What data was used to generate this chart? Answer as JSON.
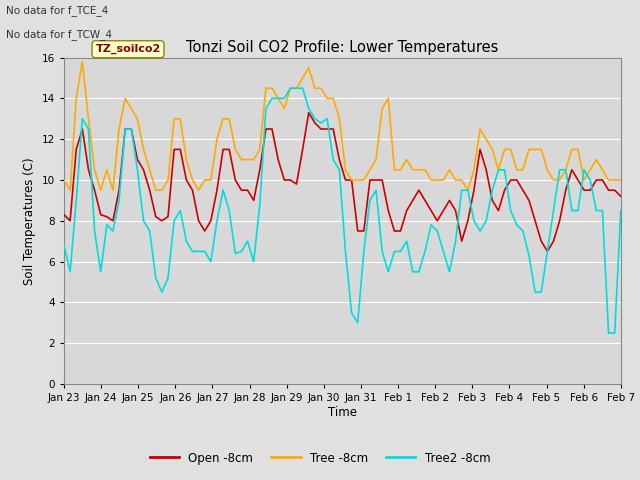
{
  "title": "Tonzi Soil CO2 Profile: Lower Temperatures",
  "ylabel": "Soil Temperatures (C)",
  "xlabel": "Time",
  "annotation1": "No data for f_TCE_4",
  "annotation2": "No data for f_TCW_4",
  "legend_box_label": "TZ_soilco2",
  "ylim": [
    0,
    16
  ],
  "yticks": [
    0,
    2,
    4,
    6,
    8,
    10,
    12,
    14,
    16
  ],
  "xtick_labels": [
    "Jan 23",
    "Jan 24",
    "Jan 25",
    "Jan 26",
    "Jan 27",
    "Jan 28",
    "Jan 29",
    "Jan 30",
    "Jan 31",
    "Feb 1",
    "Feb 2",
    "Feb 3",
    "Feb 4",
    "Feb 5",
    "Feb 6",
    "Feb 7"
  ],
  "line_colors": {
    "open": "#cc0000",
    "tree": "#ffaa00",
    "tree2": "#00dddd"
  },
  "legend_entries": [
    "Open -8cm",
    "Tree -8cm",
    "Tree2 -8cm"
  ],
  "background_color": "#e0e0e0",
  "plot_bg_color": "#d8d8d8",
  "grid_color": "#ffffff",
  "open_data": [
    8.3,
    8.0,
    11.5,
    12.5,
    10.5,
    9.5,
    8.3,
    8.2,
    8.0,
    9.5,
    12.5,
    12.5,
    11.0,
    10.5,
    9.5,
    8.2,
    8.0,
    8.2,
    11.5,
    11.5,
    10.0,
    9.5,
    8.0,
    7.5,
    8.0,
    9.5,
    11.5,
    11.5,
    10.0,
    9.5,
    9.5,
    9.0,
    10.5,
    12.5,
    12.5,
    11.0,
    10.0,
    10.0,
    9.8,
    11.5,
    13.3,
    12.8,
    12.5,
    12.5,
    12.5,
    11.0,
    10.0,
    10.0,
    7.5,
    7.5,
    10.0,
    10.0,
    10.0,
    8.5,
    7.5,
    7.5,
    8.5,
    9.0,
    9.5,
    9.0,
    8.5,
    8.0,
    8.5,
    9.0,
    8.5,
    7.0,
    8.0,
    9.5,
    11.5,
    10.5,
    9.0,
    8.5,
    9.5,
    10.0,
    10.0,
    9.5,
    9.0,
    8.0,
    7.0,
    6.5,
    7.0,
    8.0,
    9.5,
    10.5,
    10.0,
    9.5,
    9.5,
    10.0,
    10.0,
    9.5,
    9.5,
    9.2
  ],
  "tree_data": [
    10.0,
    9.5,
    14.0,
    15.8,
    13.0,
    10.5,
    9.5,
    10.5,
    9.5,
    12.5,
    14.0,
    13.5,
    13.0,
    11.5,
    10.5,
    9.5,
    9.5,
    10.0,
    13.0,
    13.0,
    11.0,
    10.0,
    9.5,
    10.0,
    10.0,
    12.0,
    13.0,
    13.0,
    11.5,
    11.0,
    11.0,
    11.0,
    11.5,
    14.5,
    14.5,
    14.0,
    13.5,
    14.5,
    14.5,
    15.0,
    15.5,
    14.5,
    14.5,
    14.0,
    14.0,
    13.0,
    10.5,
    10.0,
    10.0,
    10.0,
    10.5,
    11.0,
    13.5,
    14.0,
    10.5,
    10.5,
    11.0,
    10.5,
    10.5,
    10.5,
    10.0,
    10.0,
    10.0,
    10.5,
    10.0,
    10.0,
    9.5,
    10.5,
    12.5,
    12.0,
    11.5,
    10.5,
    11.5,
    11.5,
    10.5,
    10.5,
    11.5,
    11.5,
    11.5,
    10.5,
    10.0,
    10.0,
    10.5,
    11.5,
    11.5,
    10.0,
    10.5,
    11.0,
    10.5,
    10.0,
    10.0,
    10.0
  ],
  "tree2_data": [
    6.8,
    5.5,
    9.0,
    13.0,
    12.5,
    7.5,
    5.5,
    7.8,
    7.5,
    9.0,
    12.5,
    12.5,
    10.5,
    8.0,
    7.5,
    5.2,
    4.5,
    5.2,
    8.0,
    8.5,
    7.0,
    6.5,
    6.5,
    6.5,
    6.0,
    8.0,
    9.5,
    8.5,
    6.4,
    6.5,
    7.0,
    6.0,
    8.8,
    13.5,
    14.0,
    14.0,
    14.0,
    14.5,
    14.5,
    14.5,
    13.5,
    13.0,
    12.8,
    13.0,
    11.0,
    10.5,
    6.5,
    3.5,
    3.0,
    6.5,
    9.0,
    9.5,
    6.5,
    5.5,
    6.5,
    6.5,
    7.0,
    5.5,
    5.5,
    6.5,
    7.8,
    7.5,
    6.5,
    5.5,
    7.0,
    9.5,
    9.5,
    8.0,
    7.5,
    8.0,
    9.5,
    10.5,
    10.5,
    8.5,
    7.8,
    7.5,
    6.3,
    4.5,
    4.5,
    6.5,
    8.5,
    10.5,
    10.5,
    8.5,
    8.5,
    10.5,
    10.0,
    8.5,
    8.5,
    2.5,
    2.5,
    8.5
  ]
}
